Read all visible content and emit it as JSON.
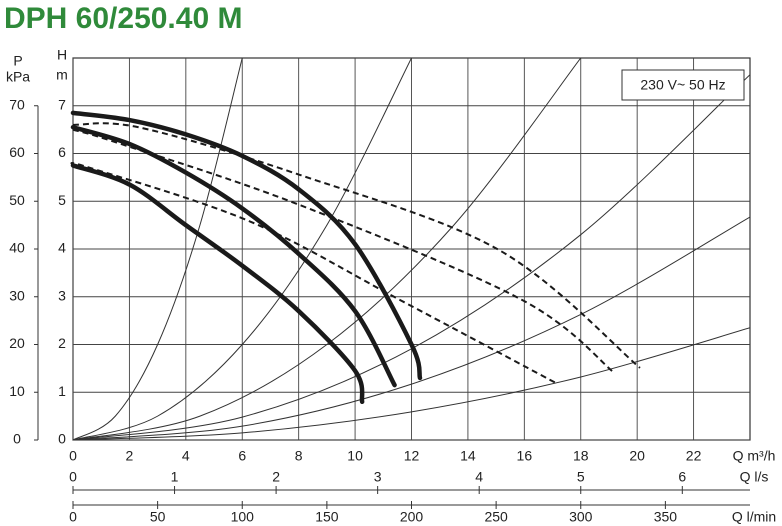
{
  "chart_data": {
    "type": "line",
    "title": "DPH 60/250.40 M",
    "annotation": "230 V~ 50 Hz",
    "ylabel_symbol": "H",
    "ylabel_unit": "m",
    "y2label_symbol": "P",
    "y2label_unit": "kPa",
    "xlabel": "Q m³/h",
    "xlim": [
      0,
      24
    ],
    "xticks": [
      0,
      2,
      4,
      6,
      8,
      10,
      12,
      14,
      16,
      18,
      20,
      22
    ],
    "ylim": [
      0,
      8
    ],
    "yticks": [
      0,
      1,
      2,
      3,
      4,
      5,
      6,
      7
    ],
    "y2lim": [
      0,
      80
    ],
    "y2ticks": [
      0,
      10,
      20,
      30,
      40,
      50,
      60,
      70
    ],
    "grid": true,
    "x2": {
      "label": "Q l/s",
      "xlim": [
        0,
        6.6667
      ],
      "xticks": [
        0,
        1,
        2,
        3,
        4,
        5,
        6
      ]
    },
    "x3": {
      "label": "Q l/min",
      "xlim": [
        0,
        400
      ],
      "xticks": [
        0,
        50,
        100,
        150,
        200,
        250,
        300,
        350
      ]
    },
    "series": [
      {
        "color": "#1a1a1a",
        "dashed": false,
        "x": [
          0,
          2,
          4,
          6,
          8,
          10,
          12,
          12.3
        ],
        "values": [
          6.85,
          6.7,
          6.4,
          5.95,
          5.25,
          4.1,
          2.0,
          1.3
        ]
      },
      {
        "color": "#1a1a1a",
        "dashed": false,
        "x": [
          0,
          2,
          4,
          6,
          8,
          10,
          11.4
        ],
        "values": [
          6.55,
          6.2,
          5.6,
          4.85,
          3.9,
          2.7,
          1.15
        ]
      },
      {
        "color": "#1a1a1a",
        "dashed": false,
        "x": [
          0,
          2,
          4,
          6,
          8,
          10,
          10.25
        ],
        "values": [
          5.75,
          5.35,
          4.5,
          3.65,
          2.7,
          1.45,
          0.8
        ]
      },
      {
        "color": "#1a1a1a",
        "dashed": true,
        "x": [
          0,
          2.4,
          8,
          15.1,
          20.1
        ],
        "values": [
          6.6,
          6.54,
          5.56,
          3.98,
          1.51
        ]
      },
      {
        "color": "#1a1a1a",
        "dashed": true,
        "x": [
          0,
          1.7,
          8,
          15.9,
          19.2
        ],
        "values": [
          6.5,
          6.2,
          4.93,
          2.94,
          1.4
        ]
      },
      {
        "color": "#1a1a1a",
        "dashed": true,
        "x": [
          0,
          0.6,
          6.3,
          11.6,
          17.1
        ],
        "values": [
          5.75,
          5.7,
          4.57,
          2.93,
          1.2
        ]
      }
    ],
    "system_curves": [
      {
        "x": [
          0,
          1.5,
          3,
          4.5,
          6
        ],
        "values": [
          0,
          0.5,
          2,
          4.5,
          8
        ]
      },
      {
        "x": [
          0,
          3,
          6,
          9,
          12
        ],
        "values": [
          0,
          0.5,
          2,
          4.5,
          8
        ]
      },
      {
        "x": [
          0,
          4.5,
          9,
          13.5,
          18
        ],
        "values": [
          0,
          0.5,
          2,
          4.5,
          8
        ]
      },
      {
        "x": [
          0,
          6,
          12,
          18,
          24
        ],
        "values": [
          0,
          0.48,
          1.91,
          4.3,
          7.65
        ]
      },
      {
        "x": [
          0,
          6,
          12,
          18,
          24
        ],
        "values": [
          0,
          0.29,
          1.17,
          2.63,
          4.67
        ]
      },
      {
        "x": [
          0,
          6,
          12,
          18,
          24
        ],
        "values": [
          0,
          0.15,
          0.59,
          1.32,
          2.35
        ]
      }
    ]
  }
}
